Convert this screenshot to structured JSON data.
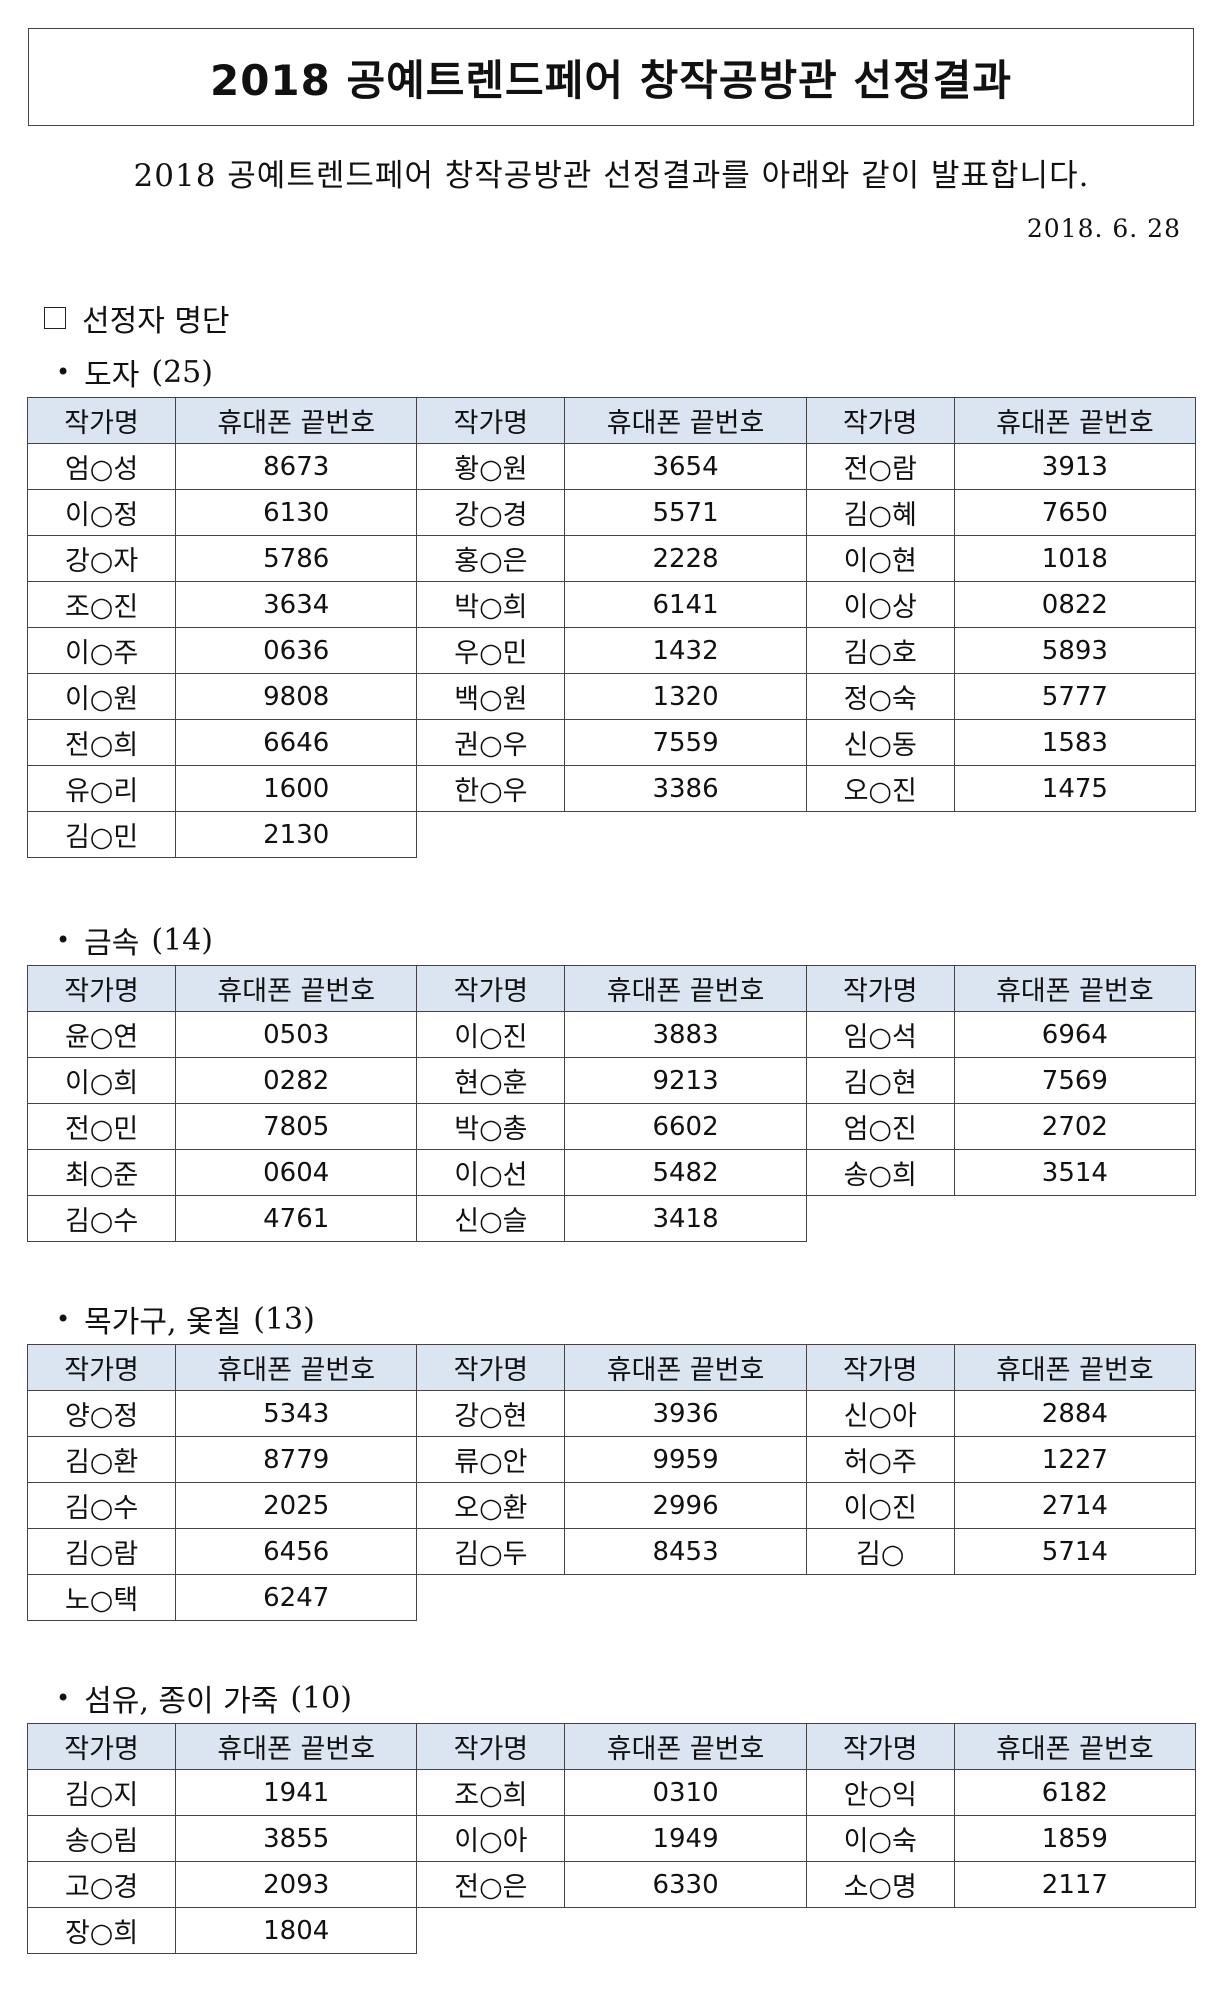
{
  "title": "2018 공예트렌드페어 창작공방관 선정결과",
  "intro": "2018 공예트렌드페어 창작공방관 선정결과를 아래와 같이 발표합니다.",
  "date": "2018. 6. 28",
  "section_heading": "선정자 명단",
  "table_headers": {
    "name": "작가명",
    "phone": "휴대폰 끝번호"
  },
  "categories": [
    {
      "name": "도자",
      "count": "(25)",
      "rows": [
        [
          [
            "엄○성",
            "8673"
          ],
          [
            "황○원",
            "3654"
          ],
          [
            "전○람",
            "3913"
          ]
        ],
        [
          [
            "이○정",
            "6130"
          ],
          [
            "강○경",
            "5571"
          ],
          [
            "김○혜",
            "7650"
          ]
        ],
        [
          [
            "강○자",
            "5786"
          ],
          [
            "홍○은",
            "2228"
          ],
          [
            "이○현",
            "1018"
          ]
        ],
        [
          [
            "조○진",
            "3634"
          ],
          [
            "박○희",
            "6141"
          ],
          [
            "이○상",
            "0822"
          ]
        ],
        [
          [
            "이○주",
            "0636"
          ],
          [
            "우○민",
            "1432"
          ],
          [
            "김○호",
            "5893"
          ]
        ],
        [
          [
            "이○원",
            "9808"
          ],
          [
            "백○원",
            "1320"
          ],
          [
            "정○숙",
            "5777"
          ]
        ],
        [
          [
            "전○희",
            "6646"
          ],
          [
            "권○우",
            "7559"
          ],
          [
            "신○동",
            "1583"
          ]
        ],
        [
          [
            "유○리",
            "1600"
          ],
          [
            "한○우",
            "3386"
          ],
          [
            "오○진",
            "1475"
          ]
        ],
        [
          [
            "김○민",
            "2130"
          ]
        ]
      ]
    },
    {
      "name": "금속",
      "count": "(14)",
      "rows": [
        [
          [
            "윤○연",
            "0503"
          ],
          [
            "이○진",
            "3883"
          ],
          [
            "임○석",
            "6964"
          ]
        ],
        [
          [
            "이○희",
            "0282"
          ],
          [
            "현○훈",
            "9213"
          ],
          [
            "김○현",
            "7569"
          ]
        ],
        [
          [
            "전○민",
            "7805"
          ],
          [
            "박○총",
            "6602"
          ],
          [
            "엄○진",
            "2702"
          ]
        ],
        [
          [
            "최○준",
            "0604"
          ],
          [
            "이○선",
            "5482"
          ],
          [
            "송○희",
            "3514"
          ]
        ],
        [
          [
            "김○수",
            "4761"
          ],
          [
            "신○슬",
            "3418"
          ]
        ]
      ]
    },
    {
      "name": "목가구, 옻칠",
      "count": "(13)",
      "rows": [
        [
          [
            "양○정",
            "5343"
          ],
          [
            "강○현",
            "3936"
          ],
          [
            "신○아",
            "2884"
          ]
        ],
        [
          [
            "김○환",
            "8779"
          ],
          [
            "류○안",
            "9959"
          ],
          [
            "허○주",
            "1227"
          ]
        ],
        [
          [
            "김○수",
            "2025"
          ],
          [
            "오○환",
            "2996"
          ],
          [
            "이○진",
            "2714"
          ]
        ],
        [
          [
            "김○람",
            "6456"
          ],
          [
            "김○두",
            "8453"
          ],
          [
            "김○",
            "5714"
          ]
        ],
        [
          [
            "노○택",
            "6247"
          ]
        ]
      ]
    },
    {
      "name": "섬유, 종이 가죽",
      "count": "(10)",
      "rows": [
        [
          [
            "김○지",
            "1941"
          ],
          [
            "조○희",
            "0310"
          ],
          [
            "안○익",
            "6182"
          ]
        ],
        [
          [
            "송○림",
            "3855"
          ],
          [
            "이○아",
            "1949"
          ],
          [
            "이○숙",
            "1859"
          ]
        ],
        [
          [
            "고○경",
            "2093"
          ],
          [
            "전○은",
            "6330"
          ],
          [
            "소○명",
            "2117"
          ]
        ],
        [
          [
            "장○희",
            "1804"
          ]
        ]
      ]
    }
  ]
}
